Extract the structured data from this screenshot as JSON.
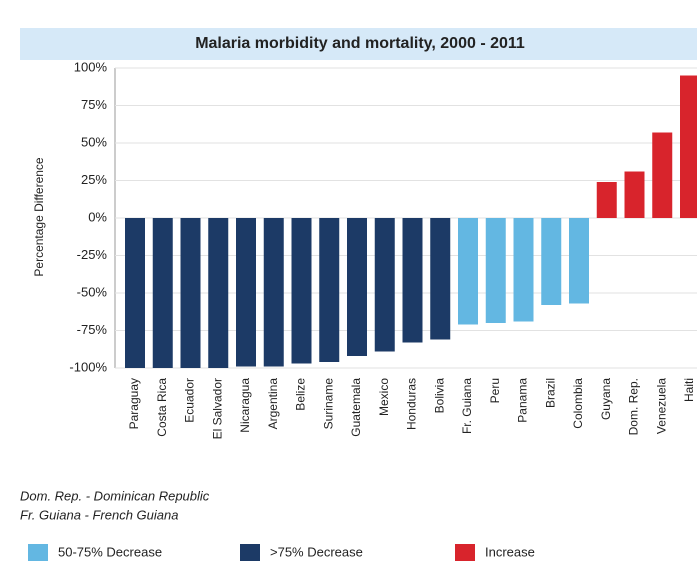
{
  "chart_data": {
    "type": "bar",
    "title": "Malaria morbidity and mortality, 2000 - 2011",
    "y_label": "Percentage Difference",
    "categories": [
      "Paraguay",
      "Costa Rica",
      "Ecuador",
      "El Salvador",
      "Nicaragua",
      "Argentina",
      "Belize",
      "Suriname",
      "Guatemala",
      "Mexico",
      "Honduras",
      "Bolivia",
      "Fr. Guiana",
      "Peru",
      "Panama",
      "Brazil",
      "Colombia",
      "Guyana",
      "Dom. Rep.",
      "Venezuela",
      "Haiti"
    ],
    "values": [
      -100,
      -100,
      -100,
      -100,
      -99,
      -99,
      -97,
      -96,
      -92,
      -89,
      -83,
      -81,
      -71,
      -70,
      -69,
      -58,
      -57,
      24,
      31,
      57,
      95
    ],
    "colors": [
      "#1c3a66",
      "#1c3a66",
      "#1c3a66",
      "#1c3a66",
      "#1c3a66",
      "#1c3a66",
      "#1c3a66",
      "#1c3a66",
      "#1c3a66",
      "#1c3a66",
      "#1c3a66",
      "#1c3a66",
      "#63b7e2",
      "#63b7e2",
      "#63b7e2",
      "#63b7e2",
      "#63b7e2",
      "#d8242c",
      "#d8242c",
      "#d8242c",
      "#d8242c"
    ],
    "ylim": [
      -100,
      100
    ],
    "yticks": [
      {
        "value": 100,
        "label": "100%"
      },
      {
        "value": 75,
        "label": "75%"
      },
      {
        "value": 50,
        "label": "50%"
      },
      {
        "value": 25,
        "label": "25%"
      },
      {
        "value": 0,
        "label": "0%"
      },
      {
        "value": -25,
        "label": "-25%"
      },
      {
        "value": -50,
        "label": "-50%"
      },
      {
        "value": -75,
        "label": "-75%"
      },
      {
        "value": -100,
        "label": "-100%"
      }
    ],
    "grid": true,
    "notes": [
      "Dom. Rep. - Dominican Republic",
      "Fr. Guiana - French Guiana"
    ],
    "legend": [
      {
        "label": "50-75% Decrease",
        "color": "#63b7e2"
      },
      {
        "label": ">75% Decrease",
        "color": "#1c3a66"
      },
      {
        "label": "Increase",
        "color": "#d8242c"
      }
    ]
  }
}
